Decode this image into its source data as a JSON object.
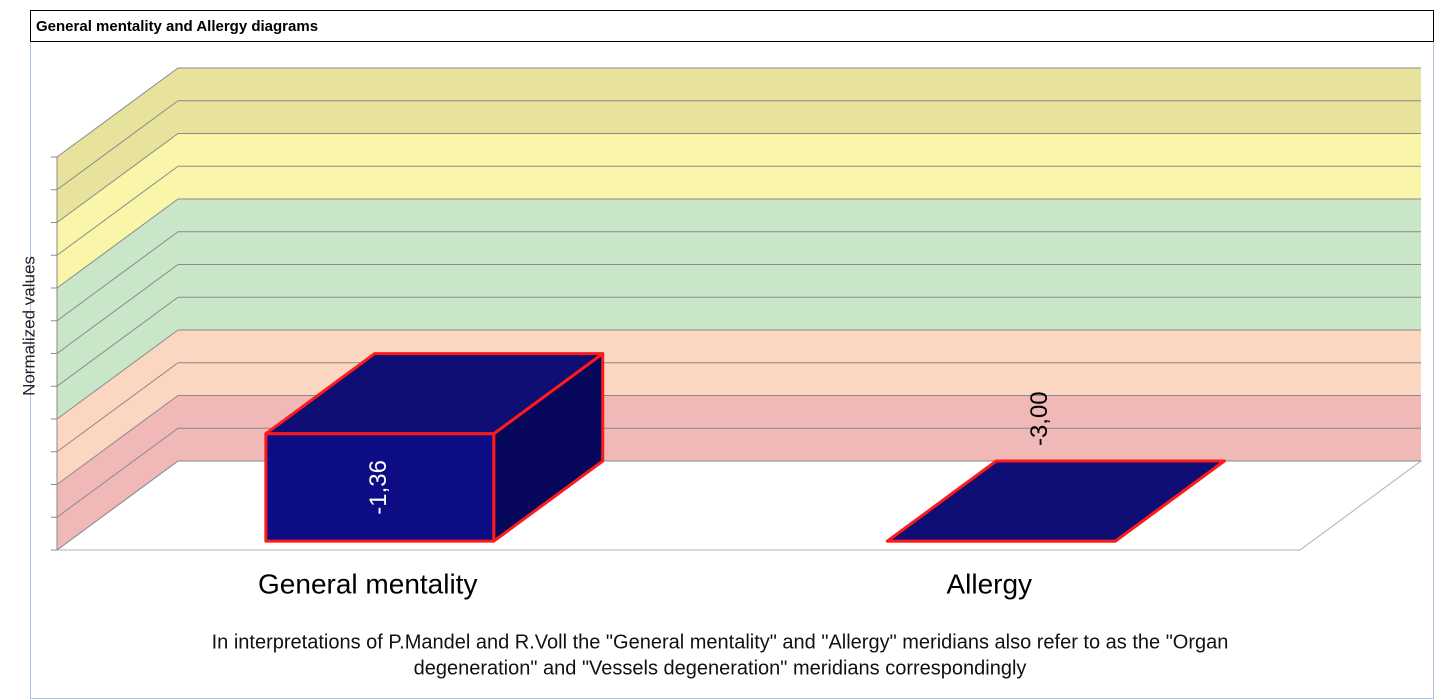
{
  "chart_data": {
    "type": "bar3d",
    "title": "General mentality and Allergy diagrams",
    "ylabel": "Normalized values",
    "categories": [
      "General mentality",
      "Allergy"
    ],
    "values": [
      -1.36,
      -3.0
    ],
    "value_labels": [
      "-1,36",
      "-3,00"
    ],
    "color": "#0c0c84",
    "edge_color": "#ff1a1a",
    "ylim": [
      -3,
      3
    ],
    "yticks": [
      -3,
      -2.5,
      -2,
      -1.5,
      -1,
      -0.5,
      0,
      0.5,
      1,
      1.5,
      2,
      2.5,
      3
    ],
    "grid": true,
    "zones": [
      {
        "from": -3,
        "to": -2,
        "color": "#f0b9b8"
      },
      {
        "from": -2,
        "to": -1,
        "color": "#fbd6c1"
      },
      {
        "from": -1,
        "to": 1,
        "color": "#c9e6c9"
      },
      {
        "from": 1,
        "to": 2,
        "color": "#f9f6aa"
      },
      {
        "from": 2,
        "to": 3,
        "color": "#e7e39c"
      }
    ],
    "footnote": [
      "In interpretations of P.Mandel and R.Voll the \"General mentality\" and \"Allergy\" meridians also refer to as the \"Organ",
      "degeneration\" and \"Vessels degeneration\" meridians correspondingly"
    ]
  }
}
